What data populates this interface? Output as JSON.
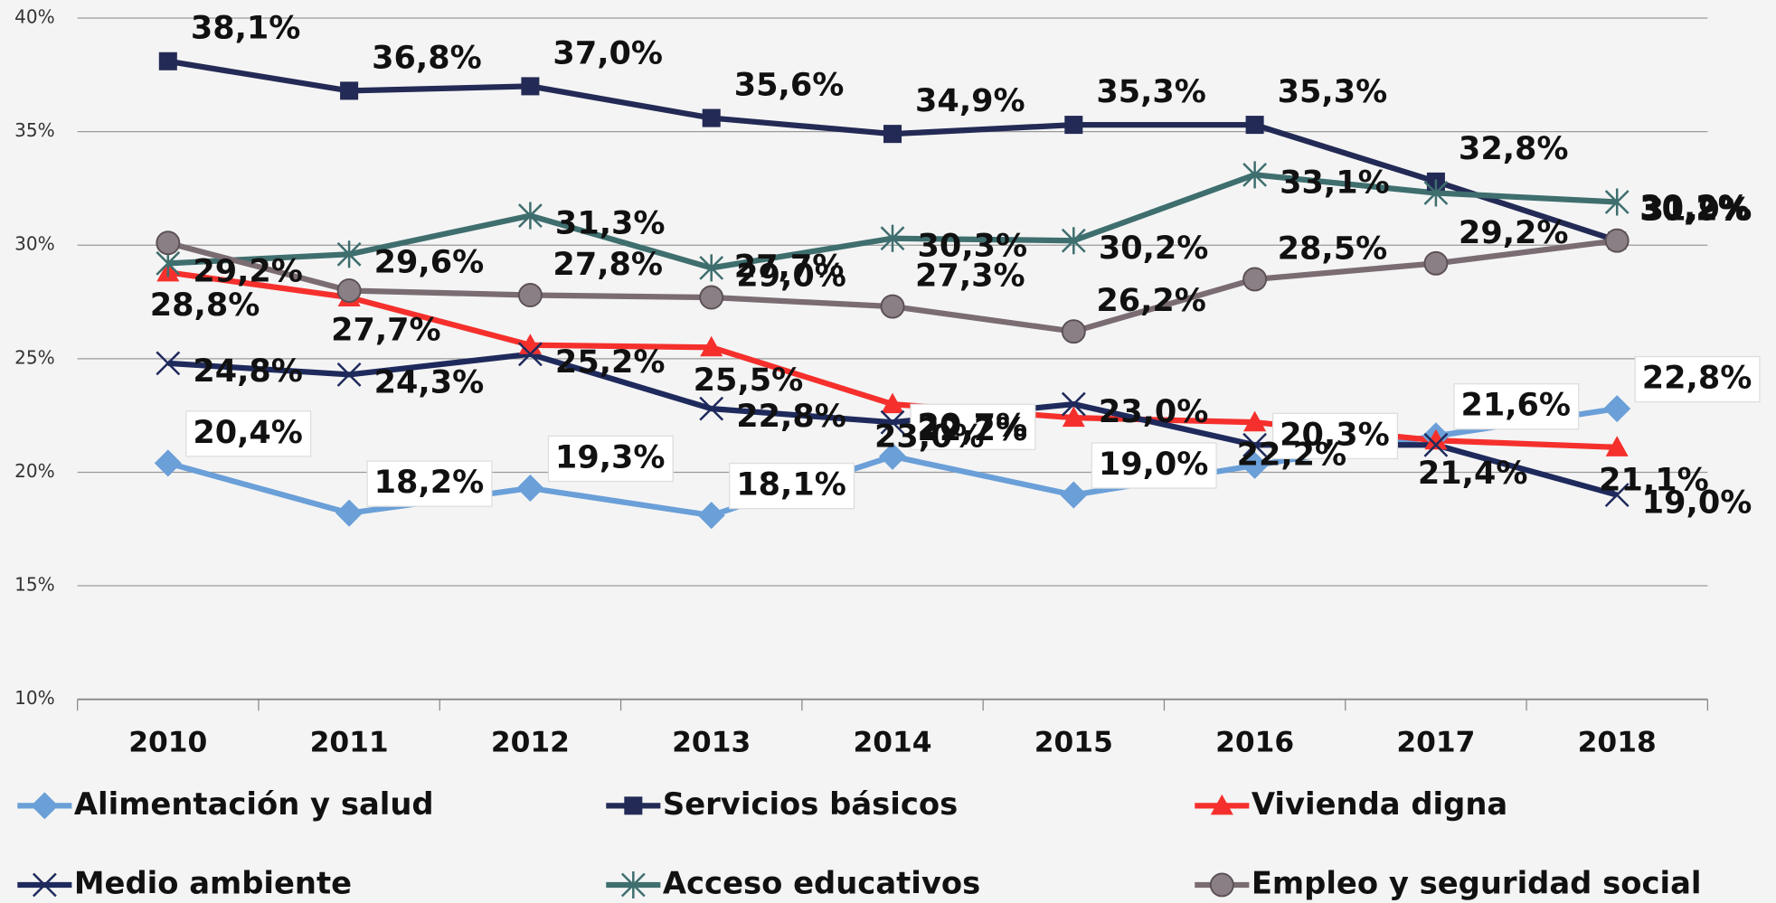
{
  "chart_data": {
    "type": "line",
    "categories": [
      "2010",
      "2011",
      "2012",
      "2013",
      "2014",
      "2015",
      "2016",
      "2017",
      "2018"
    ],
    "ylim": [
      10,
      40
    ],
    "yticks": [
      {
        "value": 10,
        "label": "10%"
      },
      {
        "value": 15,
        "label": "15%"
      },
      {
        "value": 20,
        "label": "20%"
      },
      {
        "value": 25,
        "label": "25%"
      },
      {
        "value": 30,
        "label": "30%"
      },
      {
        "value": 35,
        "label": "35%"
      },
      {
        "value": 40,
        "label": "40%"
      }
    ],
    "grid": true,
    "legend": "bottom",
    "series": [
      {
        "name": "Alimentación y salud",
        "color": "#6a9fd8",
        "marker": "diamond",
        "values": [
          20.4,
          18.2,
          19.3,
          18.1,
          20.7,
          19.0,
          20.3,
          21.6,
          22.8
        ],
        "value_labels": [
          "20,4%",
          "18,2%",
          "19,3%",
          "18,1%",
          "20,7%",
          "19,0%",
          "20,3%",
          "21,6%",
          "22,8%"
        ]
      },
      {
        "name": "Servicios básicos",
        "color": "#232a55",
        "marker": "square",
        "values": [
          38.1,
          36.8,
          37.0,
          35.6,
          34.9,
          35.3,
          35.3,
          32.8,
          30.2
        ],
        "value_labels": [
          "38,1%",
          "36,8%",
          "37,0%",
          "35,6%",
          "34,9%",
          "35,3%",
          "35,3%",
          "32,8%",
          "30,2%"
        ]
      },
      {
        "name": "Vivienda digna",
        "color": "#f5302c",
        "marker": "triangle",
        "values": [
          28.8,
          27.7,
          25.6,
          25.5,
          23.0,
          22.4,
          22.2,
          21.4,
          21.1
        ],
        "value_labels": [
          "28,8%",
          "27,7%",
          null,
          "25,5%",
          "23,0%",
          null,
          "22,2%",
          "21,4%",
          "21,1%"
        ]
      },
      {
        "name": "Medio ambiente",
        "color": "#1f2a5c",
        "marker": "x",
        "values": [
          24.8,
          24.3,
          25.2,
          22.8,
          22.2,
          23.0,
          21.2,
          21.2,
          19.0
        ],
        "value_labels": [
          "24,8%",
          "24,3%",
          "25,2%",
          "22,8%",
          "22,2%",
          "23,0%",
          null,
          null,
          "19,0%"
        ]
      },
      {
        "name": "Acceso educativos",
        "color": "#3f6e6e",
        "marker": "star",
        "values": [
          29.2,
          29.6,
          31.3,
          29.0,
          30.3,
          30.2,
          33.1,
          32.3,
          31.9
        ],
        "value_labels": [
          "29,2%",
          "29,6%",
          "31,3%",
          "29,0%",
          "30,3%",
          "30,2%",
          "33,1%",
          null,
          "31,9%"
        ]
      },
      {
        "name": "Empleo y seguridad social",
        "color": "#7a6c72",
        "marker": "circle",
        "values": [
          30.1,
          28.0,
          27.8,
          27.7,
          27.3,
          26.2,
          28.5,
          29.2,
          30.2
        ],
        "value_labels": [
          null,
          null,
          "27,8%",
          "27,7%",
          "27,3%",
          "26,2%",
          "28,5%",
          "29,2%",
          "30,2%"
        ]
      }
    ]
  }
}
